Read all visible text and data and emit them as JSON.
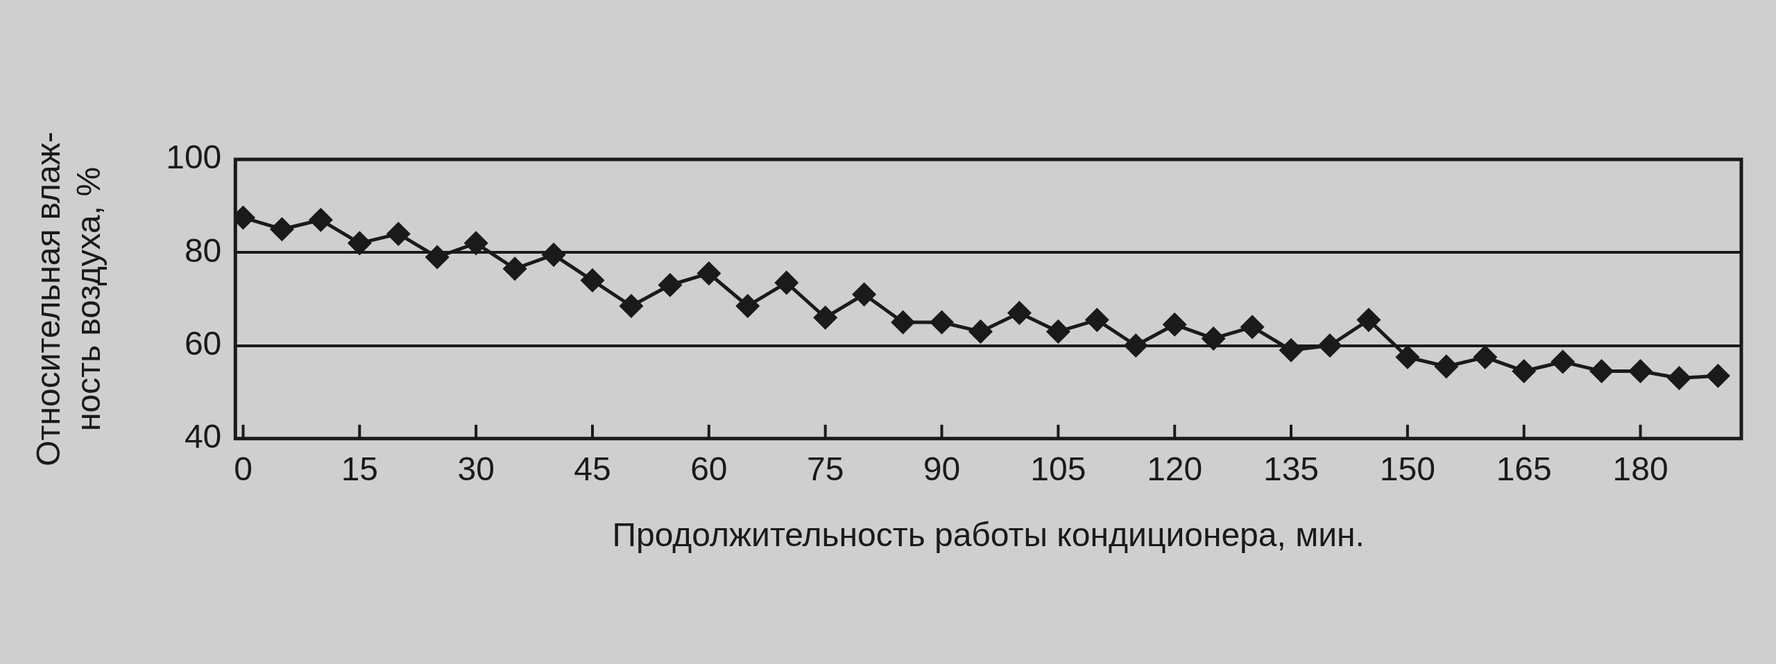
{
  "chart_data": {
    "type": "line",
    "xlabel": "Продолжительность работы кондиционера, мин.",
    "ylabel": "Относительная влаж-\nность воздуха, %",
    "x": [
      0,
      5,
      10,
      15,
      20,
      25,
      30,
      35,
      40,
      45,
      50,
      55,
      60,
      65,
      70,
      75,
      80,
      85,
      90,
      95,
      100,
      105,
      110,
      115,
      120,
      125,
      130,
      135,
      140,
      145,
      150,
      155,
      160,
      165,
      170,
      175,
      180,
      185,
      190
    ],
    "series": [
      {
        "color": "#1a1a1a",
        "values": [
          87.5,
          85,
          87,
          82,
          84,
          79,
          82,
          76.5,
          79.5,
          74,
          68.5,
          73,
          75.5,
          68.5,
          73.5,
          66,
          71,
          65,
          65,
          63,
          67,
          63,
          65.5,
          60,
          64.5,
          61.5,
          64,
          59,
          60,
          65.5,
          57.5,
          55.5,
          57.5,
          54.5,
          56.5,
          54.5,
          54.5,
          53,
          53.5
        ]
      }
    ],
    "xlim": [
      -1,
      193
    ],
    "xticks": [
      0,
      15,
      30,
      45,
      60,
      75,
      90,
      105,
      120,
      135,
      150,
      165,
      180
    ],
    "ylim": [
      40,
      100
    ],
    "yticks": [
      40,
      60,
      80,
      100
    ],
    "grid": "y",
    "marker": "diamond",
    "line_style": "solid",
    "legend": false
  }
}
